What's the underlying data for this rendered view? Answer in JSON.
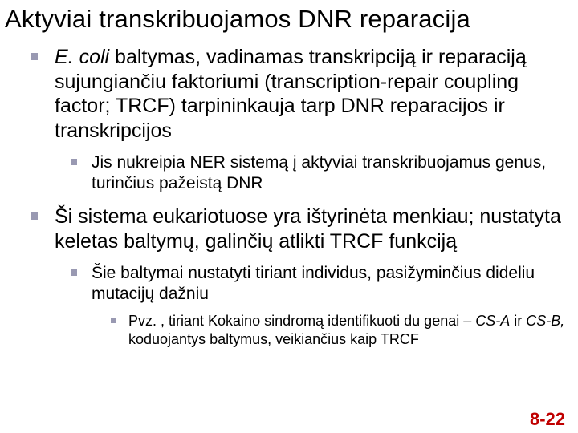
{
  "title": "Aktyviai transkribuojamos DNR reparacija",
  "bullets": {
    "b1_pre_italic": "E. coli",
    "b1_rest": " baltymas, vadinamas transkripciją ir reparaciją sujungiančiu faktoriumi (transcription‑repair coupling factor; TRCF) tarpininkauja tarp DNR reparacijos ir transkripcijos",
    "b1_sub1": "Jis nukreipia NER sistemą į aktyviai transkribuojamus genus, turinčius pažeistą DNR",
    "b2": "Ši sistema eukariotuose yra ištyrinėta menkiau; nustatyta keletas baltymų, galinčių atlikti TRCF funkciją",
    "b2_sub1": "Šie baltymai nustatyti tiriant individus, pasižyminčius dideliu mutacijų dažniu",
    "b2_sub1_sub_pre": "Pvz. , tiriant Kokaino sindromą identifikuoti du genai – ",
    "b2_sub1_sub_i1": "CS-A",
    "b2_sub1_sub_mid": " ir ",
    "b2_sub1_sub_i2": "CS-B,",
    "b2_sub1_sub_post": " koduojantys baltymus, veikiančius kaip TRCF"
  },
  "pagenum": "8-22",
  "colors": {
    "bullet_square": "#9999b2",
    "pagenum": "#c00000",
    "text": "#000000",
    "background": "#ffffff"
  },
  "typography": {
    "title_fontsize": 31,
    "lvl1_fontsize": 25,
    "lvl2_fontsize": 21,
    "lvl3_fontsize": 18,
    "pagenum_fontsize": 22,
    "font_family": "Arial"
  }
}
